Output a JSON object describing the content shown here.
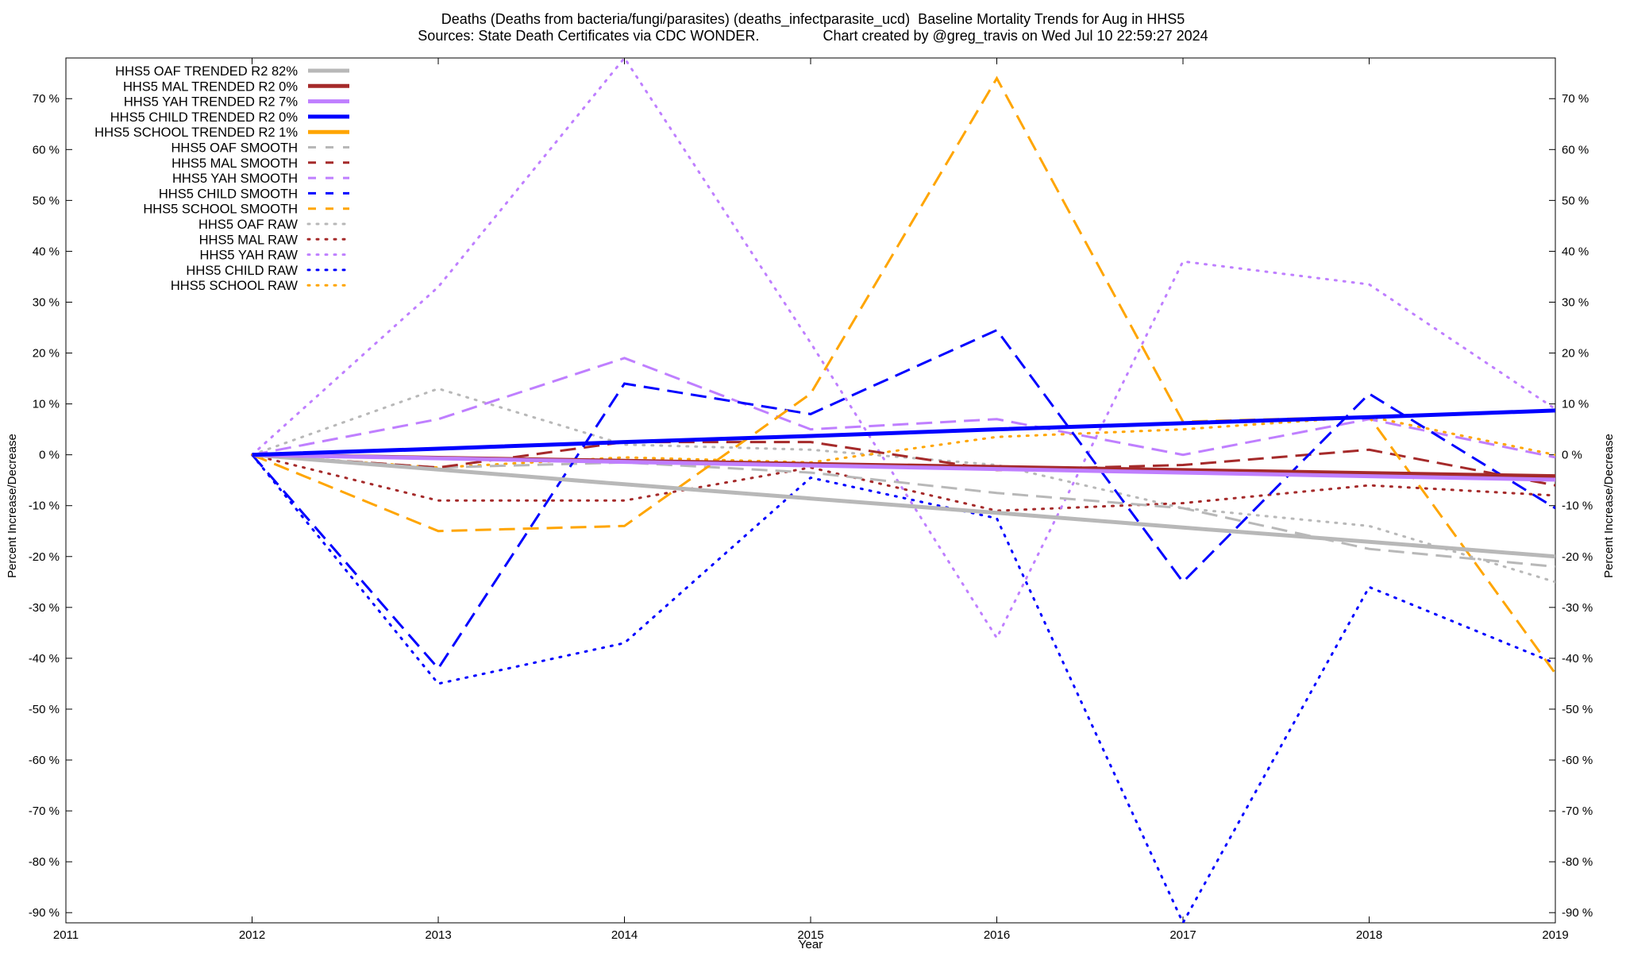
{
  "chart_data": {
    "type": "line",
    "title_line1": "Deaths (Deaths from bacteria/fungi/parasites) (deaths_infectparasite_ucd)  Baseline Mortality Trends for Aug in HHS5",
    "title_line2": "Sources: State Death Certificates via CDC WONDER.                Chart created by @greg_travis on Wed Jul 10 22:59:27 2024",
    "xlabel": "Year",
    "ylabel_left": "Percent Increase/Decrease",
    "ylabel_right": "Percent Increase/Decrease",
    "xlim": [
      2011,
      2019
    ],
    "ylim": [
      -92,
      78
    ],
    "x_ticks": [
      "2011",
      "2012",
      "2013",
      "2014",
      "2015",
      "2016",
      "2017",
      "2018",
      "2019"
    ],
    "y_ticks": [
      "70 %",
      "60 %",
      "50 %",
      "40 %",
      "30 %",
      "20 %",
      "10 %",
      "0 %",
      "-10 %",
      "-20 %",
      "-30 %",
      "-40 %",
      "-50 %",
      "-60 %",
      "-70 %",
      "-80 %",
      "-90 %"
    ],
    "legend_position": "top-left",
    "x": [
      2012,
      2013,
      2014,
      2015,
      2016,
      2017,
      2018,
      2019
    ],
    "series": [
      {
        "name": "HHS5 OAF TRENDED R2  82%",
        "style": "solid",
        "color": "#b8b8b8",
        "values": [
          0,
          -2.9,
          -5.8,
          -8.6,
          -11.4,
          -14.3,
          -17.1,
          -20
        ]
      },
      {
        "name": "HHS5 MAL TRENDED R2   0%",
        "style": "solid",
        "color": "#a52a2a",
        "values": [
          0,
          -0.6,
          -1.2,
          -1.8,
          -2.4,
          -3.0,
          -3.6,
          -4.2
        ]
      },
      {
        "name": "HHS5 YAH TRENDED R2   7%",
        "style": "solid",
        "color": "#bf7fff",
        "values": [
          0,
          -0.7,
          -1.4,
          -2.1,
          -2.8,
          -3.5,
          -4.2,
          -4.9
        ]
      },
      {
        "name": "HHS5 CHILD TRENDED R2   0%",
        "style": "solid",
        "color": "#0000ff",
        "values": [
          0,
          1.2,
          2.5,
          3.7,
          5.0,
          6.2,
          7.4,
          8.7
        ]
      },
      {
        "name": "HHS5 SCHOOL TRENDED R2   1%",
        "style": "solid",
        "color": "#ffa500",
        "values": null
      },
      {
        "name": "HHS5 OAF SMOOTH",
        "style": "dashed",
        "color": "#b8b8b8",
        "values": [
          0,
          -2.5,
          -1.5,
          -3.5,
          -7.5,
          -10.5,
          -18.5,
          -22
        ]
      },
      {
        "name": "HHS5 MAL SMOOTH",
        "style": "dashed",
        "color": "#a52a2a",
        "values": [
          0,
          -2.5,
          2.5,
          2.5,
          -3,
          -2,
          1,
          -6
        ]
      },
      {
        "name": "HHS5 YAH SMOOTH",
        "style": "dashed",
        "color": "#bf7fff",
        "values": [
          0,
          7,
          19,
          5,
          7,
          0,
          7,
          -0.5
        ]
      },
      {
        "name": "HHS5 CHILD SMOOTH",
        "style": "dashed",
        "color": "#0000ff",
        "values": [
          0,
          -42,
          14,
          8,
          24.5,
          -25,
          12,
          -10.5
        ]
      },
      {
        "name": "HHS5 SCHOOL SMOOTH",
        "style": "dashed",
        "color": "#ffa500",
        "values": [
          0,
          -15,
          -14,
          12,
          74,
          6.5,
          7.5,
          -43
        ]
      },
      {
        "name": "HHS5 OAF RAW",
        "style": "dotted",
        "color": "#b8b8b8",
        "values": [
          0,
          13,
          2,
          1,
          -2,
          -10.5,
          -14,
          -25
        ]
      },
      {
        "name": "HHS5 MAL RAW",
        "style": "dotted",
        "color": "#a52a2a",
        "values": [
          0,
          -9,
          -9,
          -2.5,
          -11,
          -9.5,
          -6,
          -8
        ]
      },
      {
        "name": "HHS5 YAH RAW",
        "style": "dotted",
        "color": "#bf7fff",
        "values": [
          0,
          33,
          78,
          22,
          -36,
          38,
          33.5,
          9
        ]
      },
      {
        "name": "HHS5 CHILD RAW",
        "style": "dotted",
        "color": "#0000ff",
        "values": [
          0,
          -45,
          -37,
          -4.5,
          -12.5,
          -92,
          -26,
          -41
        ]
      },
      {
        "name": "HHS5 SCHOOL RAW",
        "style": "dotted",
        "color": "#ffa500",
        "values": [
          0,
          -2.5,
          -0.5,
          -1.5,
          3.5,
          5,
          7.5,
          0
        ]
      }
    ]
  }
}
